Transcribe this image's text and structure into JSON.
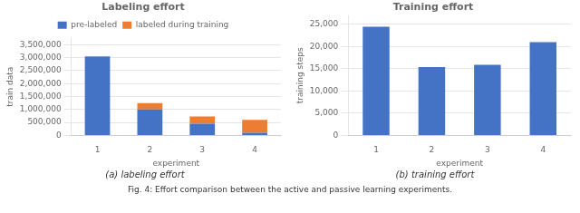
{
  "chart_data": [
    {
      "type": "bar",
      "title": "Labeling effort",
      "xlabel": "experiment",
      "ylabel": "train data",
      "caption": "(a) labeling effort",
      "categories": [
        "1",
        "2",
        "3",
        "4"
      ],
      "series": [
        {
          "name": "pre-labeled",
          "color": "#4472C4",
          "values": [
            3050000,
            1000000,
            450000,
            100000
          ]
        },
        {
          "name": "labeled during training",
          "color": "#ED7D31",
          "values": [
            0,
            250000,
            280000,
            500000
          ]
        }
      ],
      "stacked": true,
      "legend": "top",
      "grid": true,
      "ylim": [
        0,
        3750000
      ],
      "yticks": [
        0,
        {
          "value": 500000,
          "label": "500,000"
        },
        {
          "value": 1000000,
          "label": "1,000,000"
        },
        {
          "value": 1500000,
          "label": "1,500,000"
        },
        {
          "value": 2000000,
          "label": "2,000,000"
        },
        {
          "value": 2500000,
          "label": "2,500,000"
        },
        {
          "value": 3000000,
          "label": "3,000,000"
        },
        {
          "value": 3500000,
          "label": "3,500,000"
        }
      ]
    },
    {
      "type": "bar",
      "title": "Training effort",
      "xlabel": "experiment",
      "ylabel": "training steps",
      "caption": "(b) training effort",
      "categories": [
        "1",
        "2",
        "3",
        "4"
      ],
      "values": [
        24500,
        15400,
        15900,
        21000
      ],
      "color": "#4472C4",
      "grid": true,
      "ylim": [
        0,
        27000
      ],
      "yticks": [
        0,
        {
          "value": 5000,
          "label": "5,000"
        },
        {
          "value": 10000,
          "label": "10,000"
        },
        {
          "value": 15000,
          "label": "15,000"
        },
        {
          "value": 20000,
          "label": "20,000"
        },
        {
          "value": 25000,
          "label": "25,000"
        }
      ]
    }
  ],
  "caption": "Fig. 4: Effort comparison between the active and passive learning experiments."
}
